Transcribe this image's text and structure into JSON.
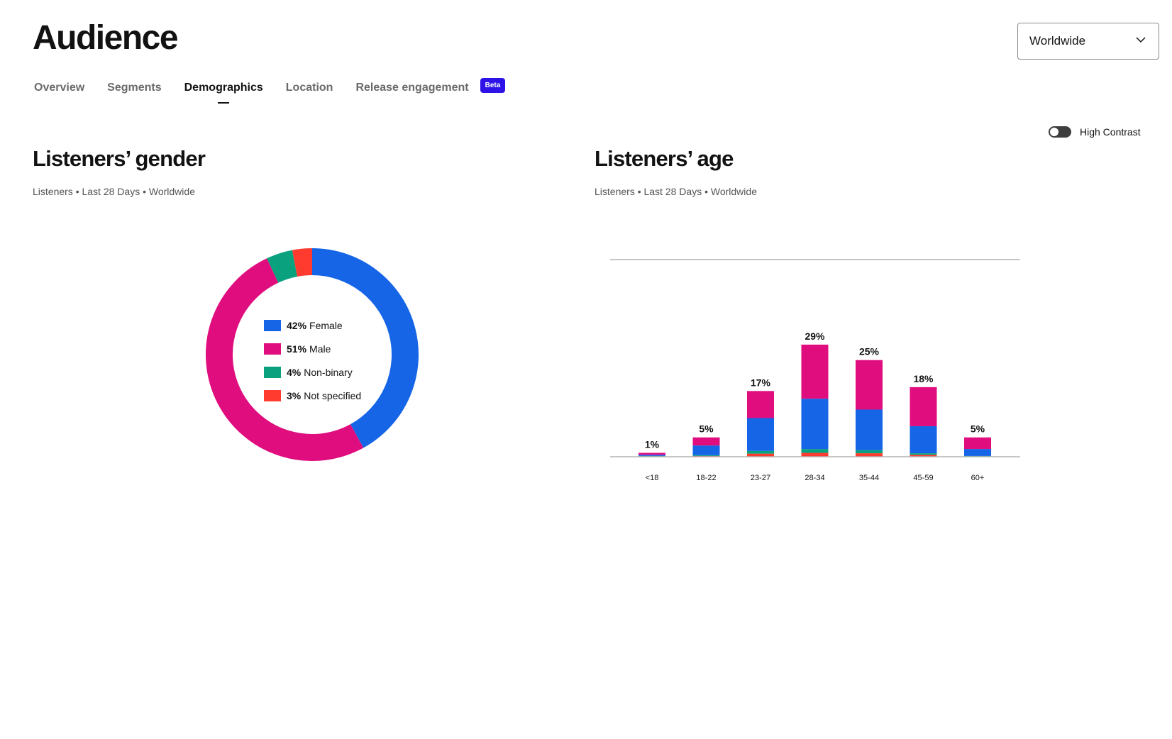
{
  "page": {
    "title": "Audience"
  },
  "region": {
    "selected": "Worldwide"
  },
  "tabs": [
    {
      "label": "Overview",
      "active": false
    },
    {
      "label": "Segments",
      "active": false
    },
    {
      "label": "Demographics",
      "active": true
    },
    {
      "label": "Location",
      "active": false
    },
    {
      "label": "Release engagement",
      "active": false
    }
  ],
  "beta_label": "Beta",
  "contrast": {
    "label": "High Contrast",
    "on": false
  },
  "gender": {
    "title": "Listeners’ gender",
    "subtitle": "Listeners • Last 28 Days • Worldwide"
  },
  "age": {
    "title": "Listeners’ age",
    "subtitle": "Listeners • Last 28 Days • Worldwide"
  },
  "colors": {
    "female": "#1565e6",
    "male": "#e00d7f",
    "nonbinary": "#0aa17e",
    "notspecified": "#ff3b30"
  },
  "chart_data": [
    {
      "type": "pie",
      "slices": [
        {
          "key": "female",
          "pct_label": "42%",
          "name": "Female",
          "value": 42
        },
        {
          "key": "male",
          "pct_label": "51%",
          "name": "Male",
          "value": 51
        },
        {
          "key": "nonbinary",
          "pct_label": "4%",
          "name": "Non-binary",
          "value": 4
        },
        {
          "key": "notspecified",
          "pct_label": "3%",
          "name": "Not specified",
          "value": 3
        }
      ]
    },
    {
      "type": "bar",
      "categories": [
        "<18",
        "18-22",
        "23-27",
        "28-34",
        "35-44",
        "45-59",
        "60+"
      ],
      "totals": [
        "1%",
        "5%",
        "17%",
        "29%",
        "25%",
        "18%",
        "5%"
      ],
      "series": [
        {
          "key": "notspecified",
          "values": [
            0.1,
            0.2,
            0.8,
            1.0,
            0.9,
            0.5,
            0.1
          ]
        },
        {
          "key": "nonbinary",
          "values": [
            0.1,
            0.2,
            0.7,
            1.0,
            0.8,
            0.4,
            0.1
          ]
        },
        {
          "key": "female",
          "values": [
            0.3,
            2.5,
            8.5,
            13.0,
            10.5,
            7.0,
            1.8
          ]
        },
        {
          "key": "male",
          "values": [
            0.5,
            2.1,
            7.0,
            14.0,
            12.8,
            10.1,
            3.0
          ]
        }
      ],
      "ylim": [
        0,
        51
      ]
    }
  ]
}
